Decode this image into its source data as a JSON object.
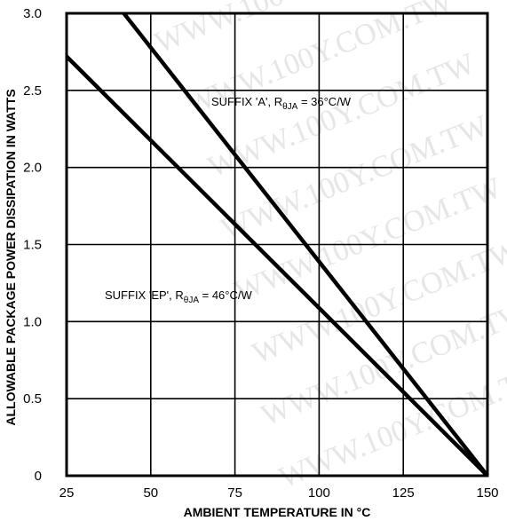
{
  "chart_data": {
    "type": "line",
    "title": "",
    "xlabel": "AMBIENT TEMPERATURE IN °C",
    "ylabel": "ALLOWABLE PACKAGE POWER DISSIPATION IN WATTS",
    "xlim": [
      25,
      150
    ],
    "ylim": [
      0,
      3.0
    ],
    "x_ticks": [
      "25",
      "50",
      "75",
      "100",
      "125",
      "150"
    ],
    "y_ticks": [
      "0",
      "0.5",
      "1.0",
      "1.5",
      "2.0",
      "2.5",
      "3.0"
    ],
    "grid": true,
    "series": [
      {
        "name": "SUFFIX 'A', RθJA = 36°C/W",
        "label_main": "SUFFIX 'A', R",
        "label_sub": "θJA",
        "label_tail": " = 36°C/W",
        "x": [
          42.0,
          150
        ],
        "y": [
          3.0,
          0.0
        ]
      },
      {
        "name": "SUFFIX 'EP', RθJA = 46°C/W",
        "label_main": "SUFFIX 'EP', R",
        "label_sub": "θJA",
        "label_tail": " = 46°C/W",
        "x": [
          25,
          150
        ],
        "y": [
          2.72,
          0.0
        ]
      }
    ],
    "watermark": "WWW.100Y.COM.TW"
  }
}
